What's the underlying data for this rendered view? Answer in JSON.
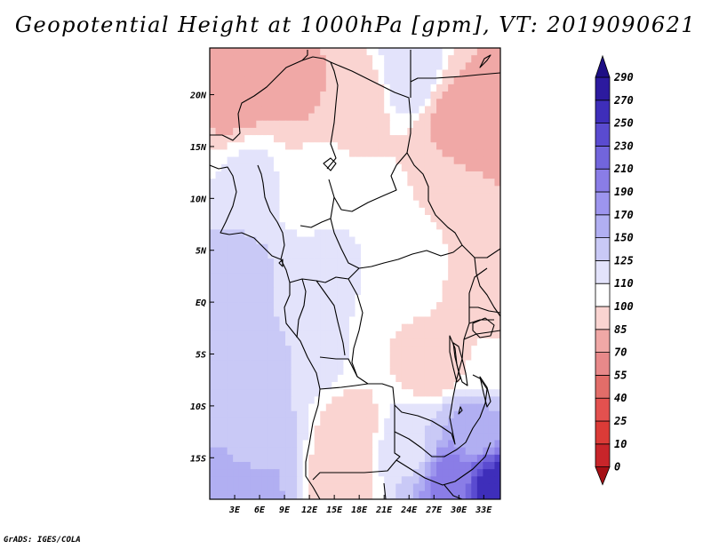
{
  "chart_data": {
    "type": "heatmap",
    "title": "Geopotential Height at 1000hPa [gpm], VT: 2019090621",
    "variable": "Geopotential Height",
    "level": "1000hPa",
    "units": "gpm",
    "valid_time": "2019090621",
    "x_axis": {
      "range": [
        0,
        35
      ],
      "ticks": [
        3,
        6,
        9,
        12,
        15,
        18,
        21,
        24,
        27,
        30,
        33
      ],
      "tick_labels": [
        "3E",
        "6E",
        "9E",
        "12E",
        "15E",
        "18E",
        "21E",
        "24E",
        "27E",
        "30E",
        "33E"
      ]
    },
    "y_axis": {
      "range": [
        -19,
        24.5
      ],
      "ticks": [
        20,
        15,
        10,
        5,
        0,
        -5,
        -10,
        -15
      ],
      "tick_labels": [
        "20N",
        "15N",
        "10N",
        "5N",
        "EQ",
        "5S",
        "10S",
        "15S"
      ]
    },
    "colorbar": {
      "levels": [
        0,
        10,
        25,
        40,
        55,
        70,
        85,
        100,
        110,
        125,
        150,
        170,
        190,
        210,
        230,
        250,
        270,
        290
      ],
      "colors": [
        "#a50f15",
        "#c8252a",
        "#db3b37",
        "#e3514f",
        "#e26d69",
        "#e8898a",
        "#f0a8a6",
        "#fad4d1",
        "#ffffff",
        "#e3e3fb",
        "#c9c9f6",
        "#b1aff2",
        "#9d95ee",
        "#8a7de7",
        "#7265dc",
        "#5a4bd0",
        "#3e2eba",
        "#2c1a9f",
        "#1e0f85"
      ]
    },
    "field_samples": [
      {
        "lon": 3,
        "lat": 20,
        "value": 78
      },
      {
        "lon": 10,
        "lat": 21,
        "value": 80
      },
      {
        "lon": 18,
        "lat": 20,
        "value": 92
      },
      {
        "lon": 24,
        "lat": 22,
        "value": 120
      },
      {
        "lon": 30,
        "lat": 18,
        "value": 80
      },
      {
        "lon": 33,
        "lat": 17,
        "value": 70
      },
      {
        "lon": 5,
        "lat": 12,
        "value": 112
      },
      {
        "lon": 13,
        "lat": 12,
        "value": 102
      },
      {
        "lon": 20,
        "lat": 10,
        "value": 101
      },
      {
        "lon": 29,
        "lat": 9,
        "value": 100
      },
      {
        "lon": 3,
        "lat": 3,
        "value": 130
      },
      {
        "lon": 15,
        "lat": 4,
        "value": 112
      },
      {
        "lon": 24,
        "lat": 2,
        "value": 103
      },
      {
        "lon": 33,
        "lat": 1,
        "value": 95
      },
      {
        "lon": 4,
        "lat": -6,
        "value": 130
      },
      {
        "lon": 13,
        "lat": -4,
        "value": 125
      },
      {
        "lon": 20,
        "lat": -5,
        "value": 100
      },
      {
        "lon": 27,
        "lat": -6,
        "value": 88
      },
      {
        "lon": 33,
        "lat": -6,
        "value": 100
      },
      {
        "lon": 5,
        "lat": -14,
        "value": 145
      },
      {
        "lon": 17,
        "lat": -12,
        "value": 95
      },
      {
        "lon": 24,
        "lat": -14,
        "value": 120
      },
      {
        "lon": 32,
        "lat": -12,
        "value": 155
      },
      {
        "lon": 4,
        "lat": -18,
        "value": 168
      },
      {
        "lon": 16,
        "lat": -17,
        "value": 90
      },
      {
        "lon": 29,
        "lat": -17,
        "value": 195
      },
      {
        "lon": 34,
        "lat": -18,
        "value": 260
      }
    ]
  },
  "credit": "GrADS: IGES/COLA"
}
